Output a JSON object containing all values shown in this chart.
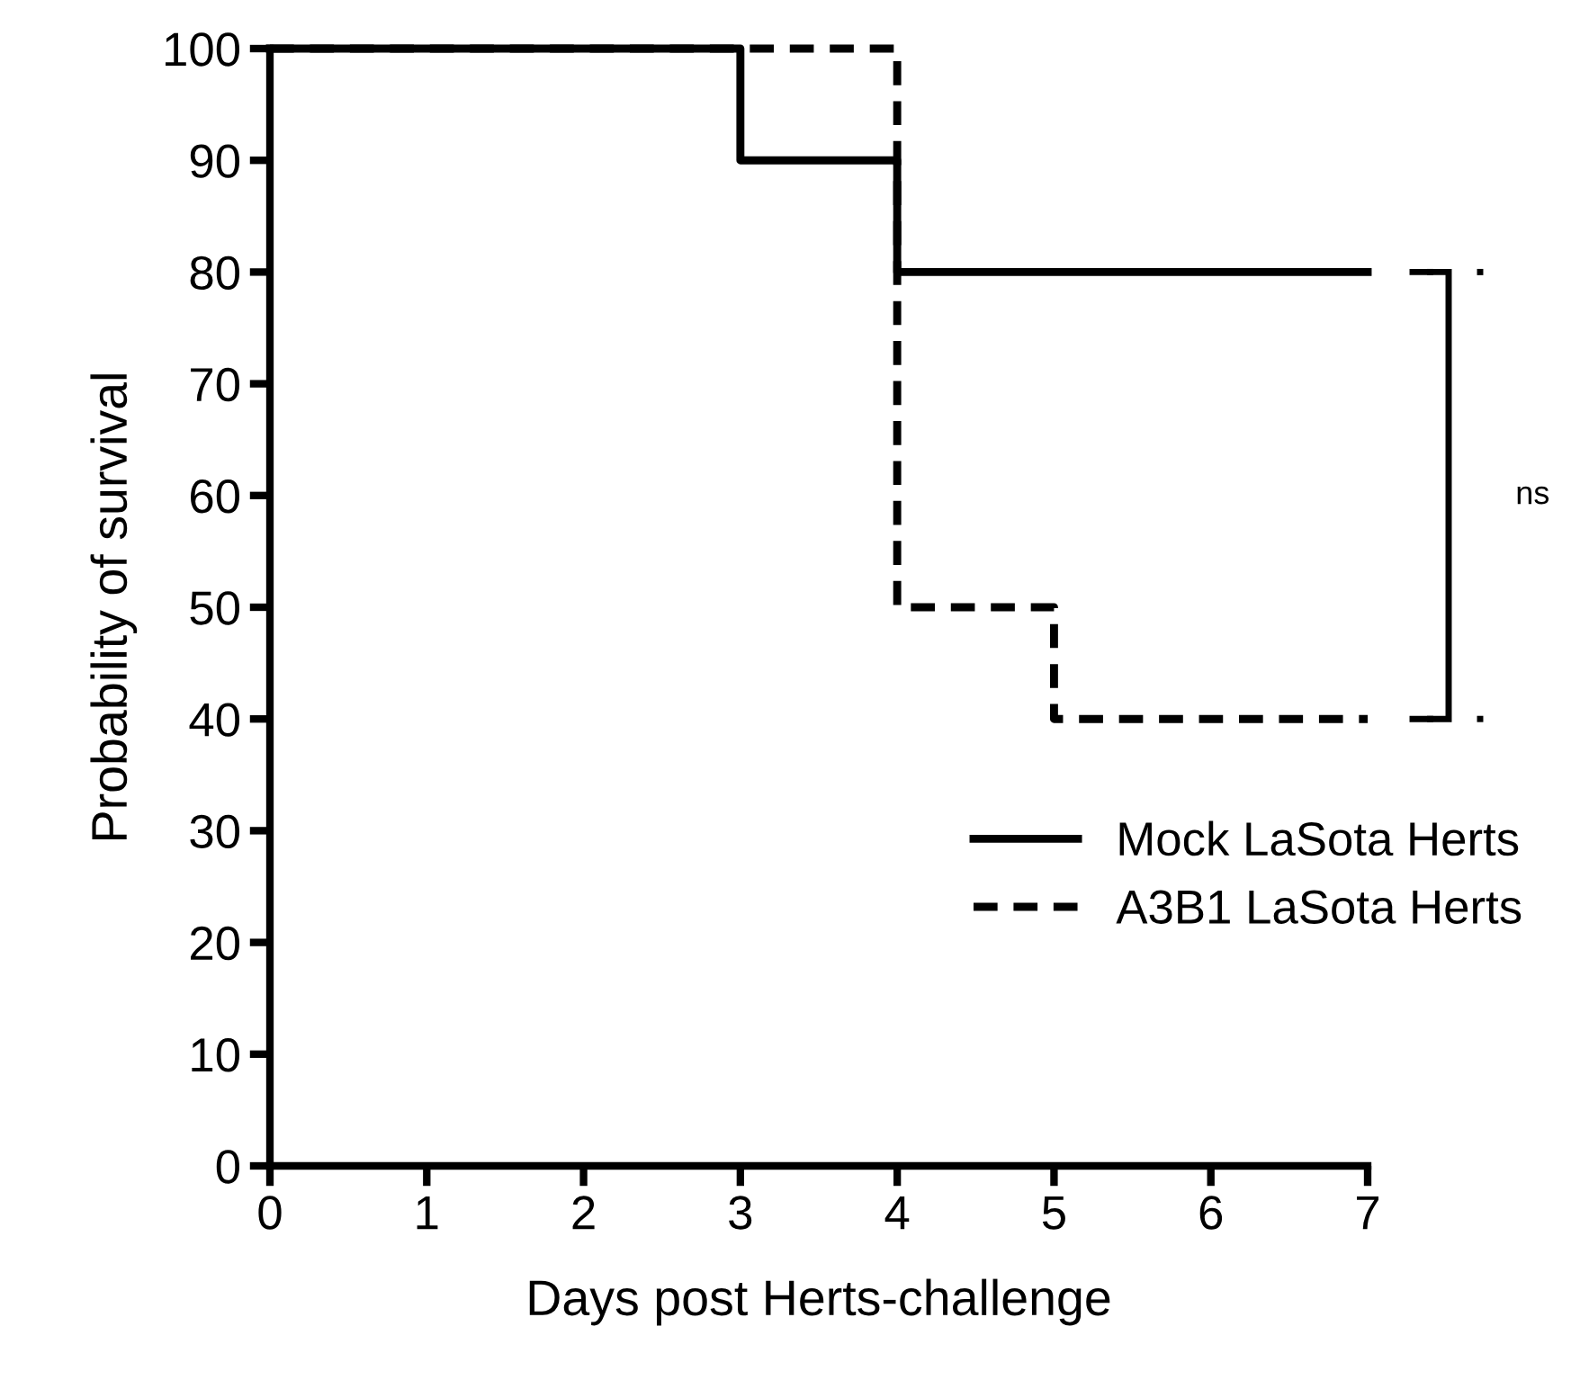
{
  "chart_data": {
    "type": "step",
    "xlabel": "Days post Herts-challenge",
    "ylabel": "Probability of survival",
    "series": [
      {
        "name": "Mock LaSota Herts",
        "color": "#000000",
        "line_style": "solid",
        "x": [
          0,
          3,
          4,
          7
        ],
        "values": [
          100,
          90,
          80,
          80
        ]
      },
      {
        "name": "A3B1 LaSota Herts",
        "color": "#000000",
        "line_style": "dashed",
        "x": [
          0,
          4,
          5,
          7
        ],
        "values": [
          100,
          50,
          40,
          40
        ]
      }
    ],
    "xlim": [
      0,
      7
    ],
    "ylim": [
      0,
      100
    ],
    "xticks": [
      0,
      1,
      2,
      3,
      4,
      5,
      6,
      7
    ],
    "yticks": [
      0,
      10,
      20,
      30,
      40,
      50,
      60,
      70,
      80,
      90,
      100
    ],
    "grid": false,
    "legend": "bottom right",
    "marker": "none",
    "annotations": [
      "ns"
    ]
  }
}
